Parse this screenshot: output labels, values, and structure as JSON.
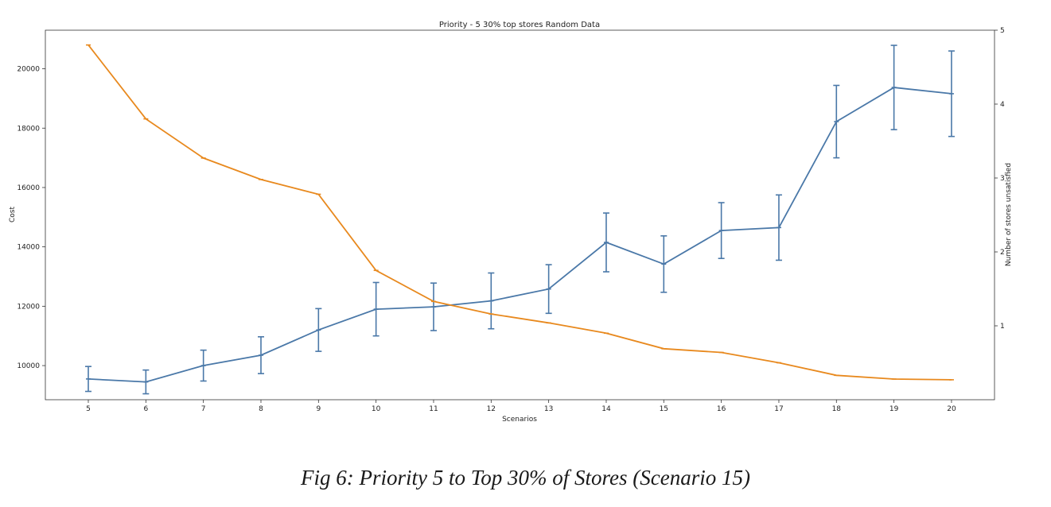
{
  "caption": "Fig 6: Priority 5 to Top 30% of Stores (Scenario 15)",
  "chart_data": {
    "type": "line",
    "title": "Priority - 5 30% top stores Random Data",
    "xlabel": "Scenarios",
    "ylabel_left": "Cost",
    "ylabel_right": "Number of stores unsatisfied",
    "categories": [
      "5",
      "6",
      "7",
      "8",
      "9",
      "10",
      "11",
      "12",
      "13",
      "14",
      "15",
      "16",
      "17",
      "18",
      "19",
      "20"
    ],
    "ylim_left": [
      8850,
      21300
    ],
    "yticks_left": [
      10000,
      12000,
      14000,
      16000,
      18000,
      20000
    ],
    "ylim_right": [
      0,
      5
    ],
    "yticks_right": [
      1,
      2,
      3,
      4,
      5
    ],
    "series": [
      {
        "name": "Cost",
        "axis": "left",
        "color": "#4a78a8",
        "values": [
          9550,
          9450,
          10000,
          10350,
          11200,
          11900,
          11980,
          12180,
          12580,
          14150,
          13420,
          14550,
          14650,
          18220,
          19370,
          19160
        ],
        "error": [
          420,
          400,
          520,
          620,
          720,
          900,
          800,
          940,
          820,
          990,
          950,
          940,
          1100,
          1220,
          1420,
          1440
        ]
      },
      {
        "name": "Number of stores unsatisfied",
        "axis": "right",
        "color": "#e8891e",
        "values": [
          4.8,
          3.8,
          3.27,
          2.98,
          2.78,
          1.75,
          1.33,
          1.16,
          1.04,
          0.9,
          0.69,
          0.64,
          0.5,
          0.33,
          0.28,
          0.27
        ]
      }
    ]
  }
}
